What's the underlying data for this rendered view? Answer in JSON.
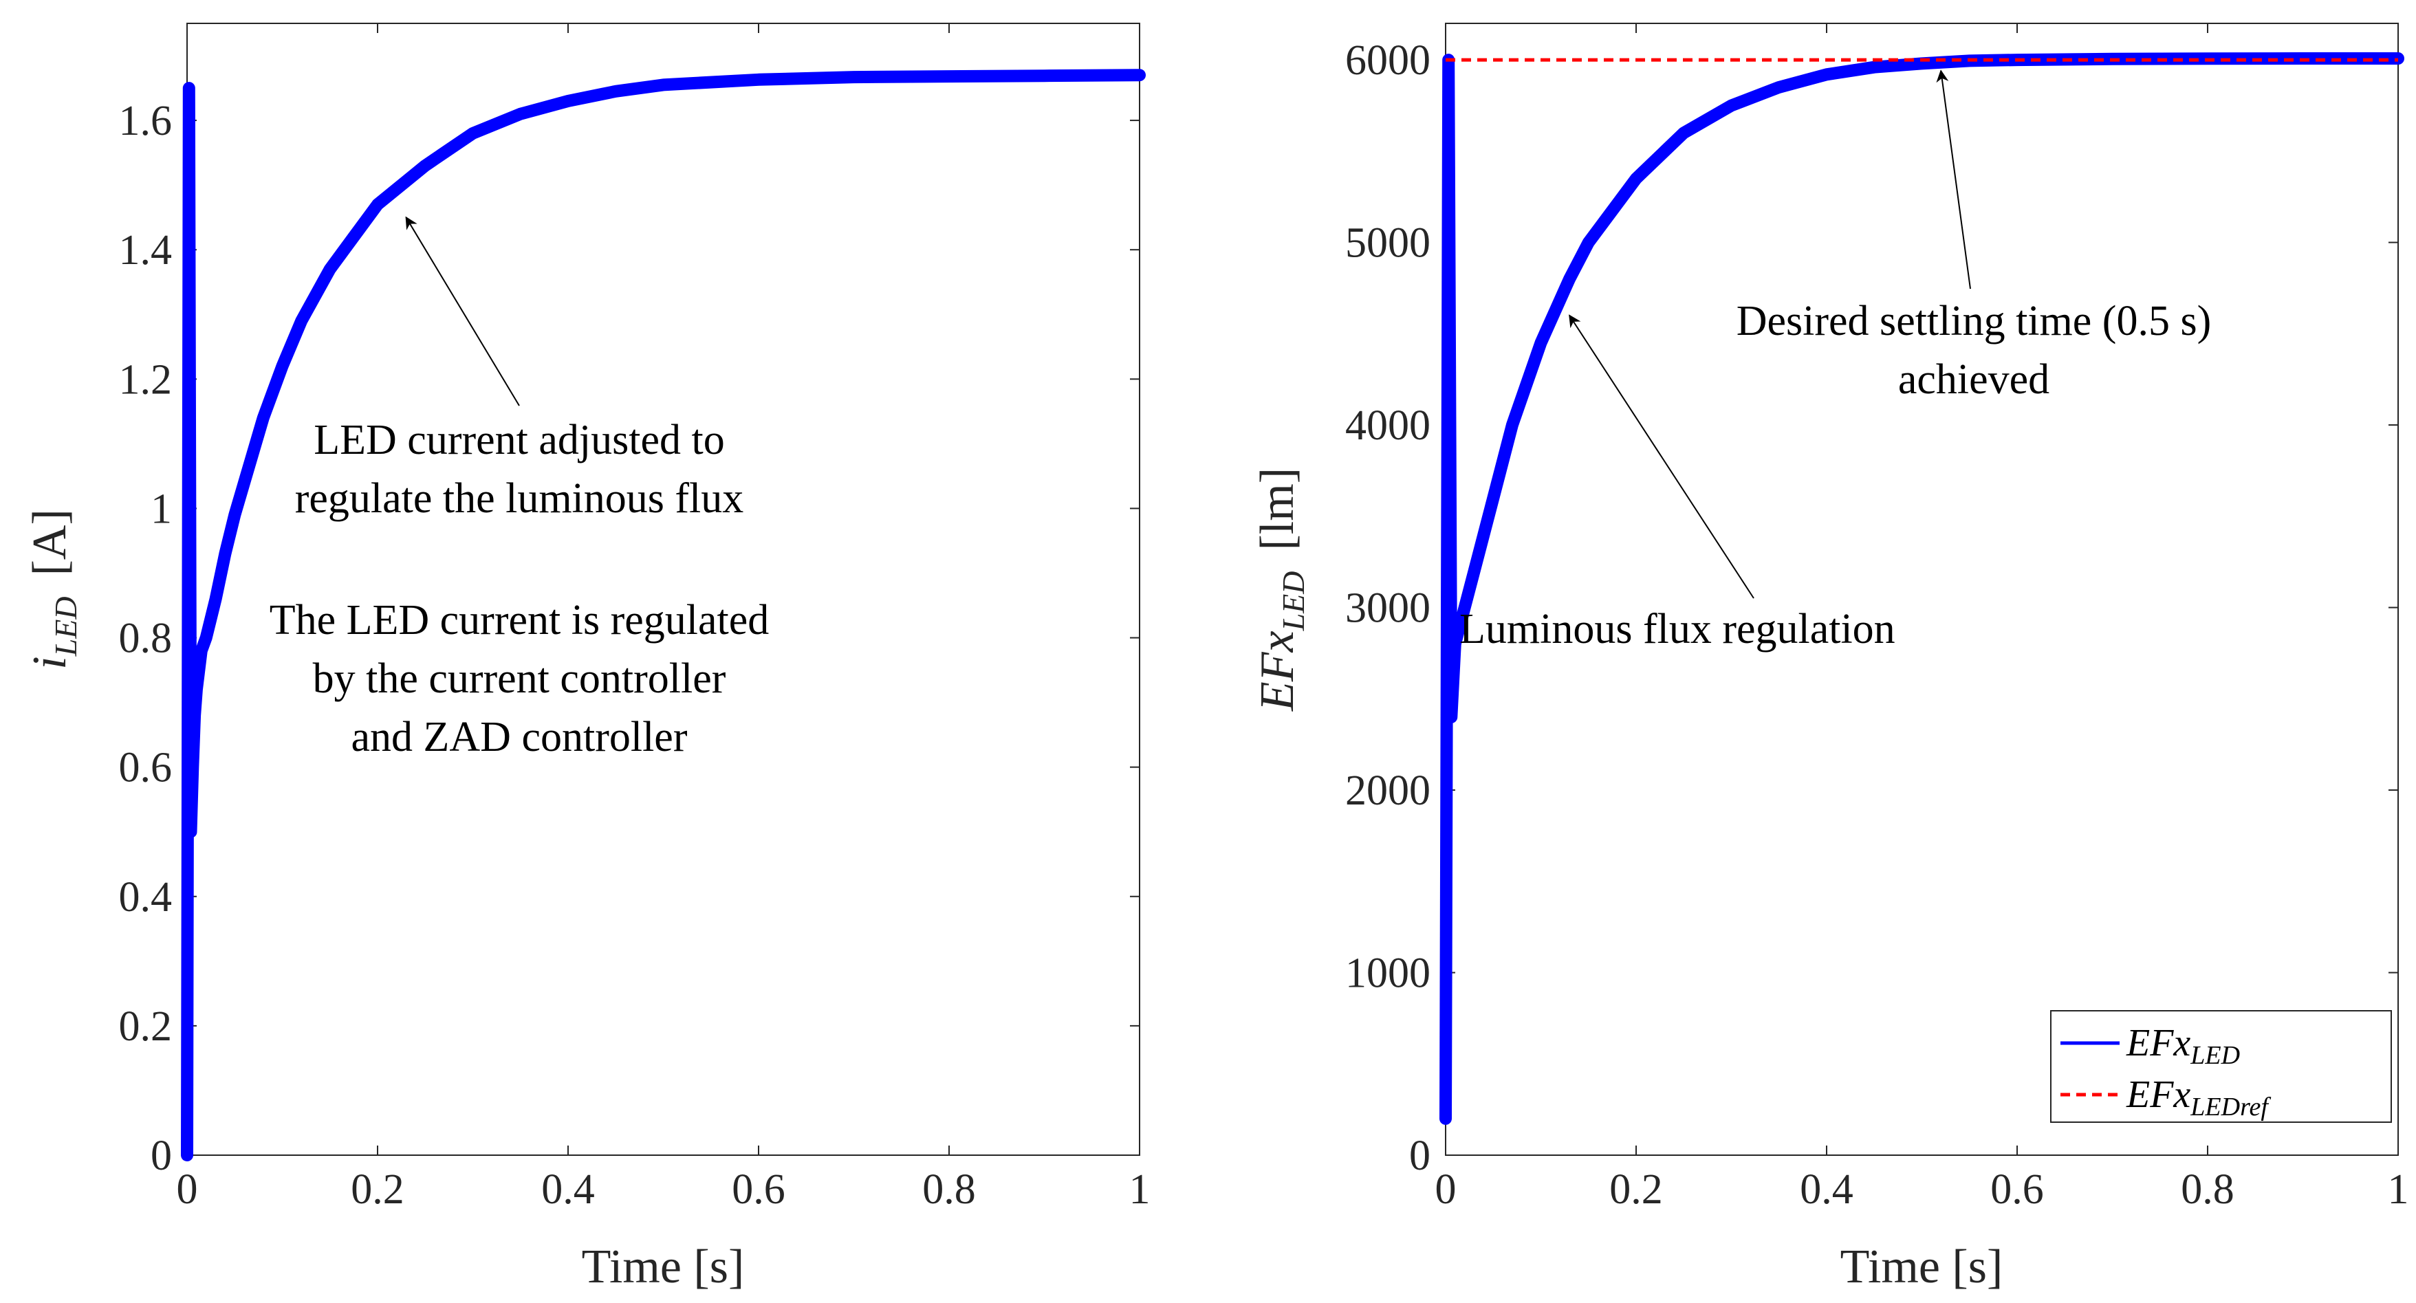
{
  "chart_data": [
    {
      "type": "line",
      "xlabel": "Time [s]",
      "ylabel": {
        "var_main": "i",
        "var_sub": "LED",
        "unit": "[A]"
      },
      "xlim": [
        0,
        1
      ],
      "ylim": [
        0,
        1.75
      ],
      "xticks": [
        0,
        0.2,
        0.4,
        0.6,
        0.8,
        1
      ],
      "xtick_labels": [
        "0",
        "0.2",
        "0.4",
        "0.6",
        "0.8",
        "1"
      ],
      "yticks": [
        0,
        0.2,
        0.4,
        0.6,
        0.8,
        1,
        1.2,
        1.4,
        1.6
      ],
      "ytick_labels": [
        "0",
        "0.2",
        "0.4",
        "0.6",
        "0.8",
        "1",
        "1.2",
        "1.4",
        "1.6"
      ],
      "grid": false,
      "series": [
        {
          "color": "#0000ff",
          "style": "solid",
          "x": [
            0,
            0.002,
            0.004,
            0.006,
            0.008,
            0.01,
            0.015,
            0.02,
            0.03,
            0.04,
            0.05,
            0.06,
            0.08,
            0.1,
            0.12,
            0.15,
            0.2,
            0.25,
            0.3,
            0.35,
            0.4,
            0.45,
            0.5,
            0.6,
            0.7,
            0.8,
            0.9,
            1.0
          ],
          "y": [
            0,
            1.65,
            0.5,
            0.6,
            0.68,
            0.72,
            0.78,
            0.8,
            0.86,
            0.93,
            0.99,
            1.04,
            1.14,
            1.22,
            1.29,
            1.37,
            1.47,
            1.53,
            1.58,
            1.61,
            1.63,
            1.645,
            1.655,
            1.663,
            1.667,
            1.668,
            1.669,
            1.67
          ]
        }
      ],
      "annotations": [
        {
          "lines": [
            "LED current adjusted to",
            "regulate the luminous flux"
          ],
          "arrow_to": [
            0.23,
            1.45
          ]
        },
        {
          "lines": [
            "The LED current is regulated",
            "by the current controller",
            "and ZAD controller"
          ]
        }
      ]
    },
    {
      "type": "line",
      "xlabel": "Time [s]",
      "ylabel": {
        "var_main": "EFx",
        "var_sub": "LED",
        "unit": "[lm]"
      },
      "xlim": [
        0,
        1
      ],
      "ylim": [
        0,
        6200
      ],
      "xticks": [
        0,
        0.2,
        0.4,
        0.6,
        0.8,
        1
      ],
      "xtick_labels": [
        "0",
        "0.2",
        "0.4",
        "0.6",
        "0.8",
        "1"
      ],
      "yticks": [
        0,
        1000,
        2000,
        3000,
        4000,
        5000,
        6000
      ],
      "ytick_labels": [
        "0",
        "1000",
        "2000",
        "3000",
        "4000",
        "5000",
        "6000"
      ],
      "grid": false,
      "legend": "bottom-right",
      "series": [
        {
          "name_main": "EFx",
          "name_sub": "LED",
          "color": "#0000ff",
          "style": "solid",
          "x": [
            0,
            0.003,
            0.006,
            0.01,
            0.02,
            0.03,
            0.05,
            0.07,
            0.1,
            0.13,
            0.15,
            0.2,
            0.25,
            0.3,
            0.35,
            0.4,
            0.45,
            0.5,
            0.55,
            0.6,
            0.7,
            0.8,
            0.9,
            1.0
          ],
          "y": [
            200,
            6000,
            2400,
            2800,
            3000,
            3200,
            3600,
            4000,
            4450,
            4800,
            5000,
            5350,
            5600,
            5750,
            5850,
            5920,
            5960,
            5980,
            5995,
            6000,
            6005,
            6007,
            6008,
            6008
          ]
        },
        {
          "name_main": "EFx",
          "name_sub": "LEDref",
          "color": "#ff0000",
          "style": "dashed",
          "x": [
            0,
            1
          ],
          "y": [
            6000,
            6000
          ]
        }
      ],
      "annotations": [
        {
          "lines": [
            "Desired settling time (0.5 s)",
            "achieved"
          ],
          "arrow_to": [
            0.52,
            5940
          ]
        },
        {
          "lines": [
            "Luminous flux regulation"
          ],
          "arrow_to": [
            0.13,
            4600
          ]
        }
      ]
    }
  ]
}
